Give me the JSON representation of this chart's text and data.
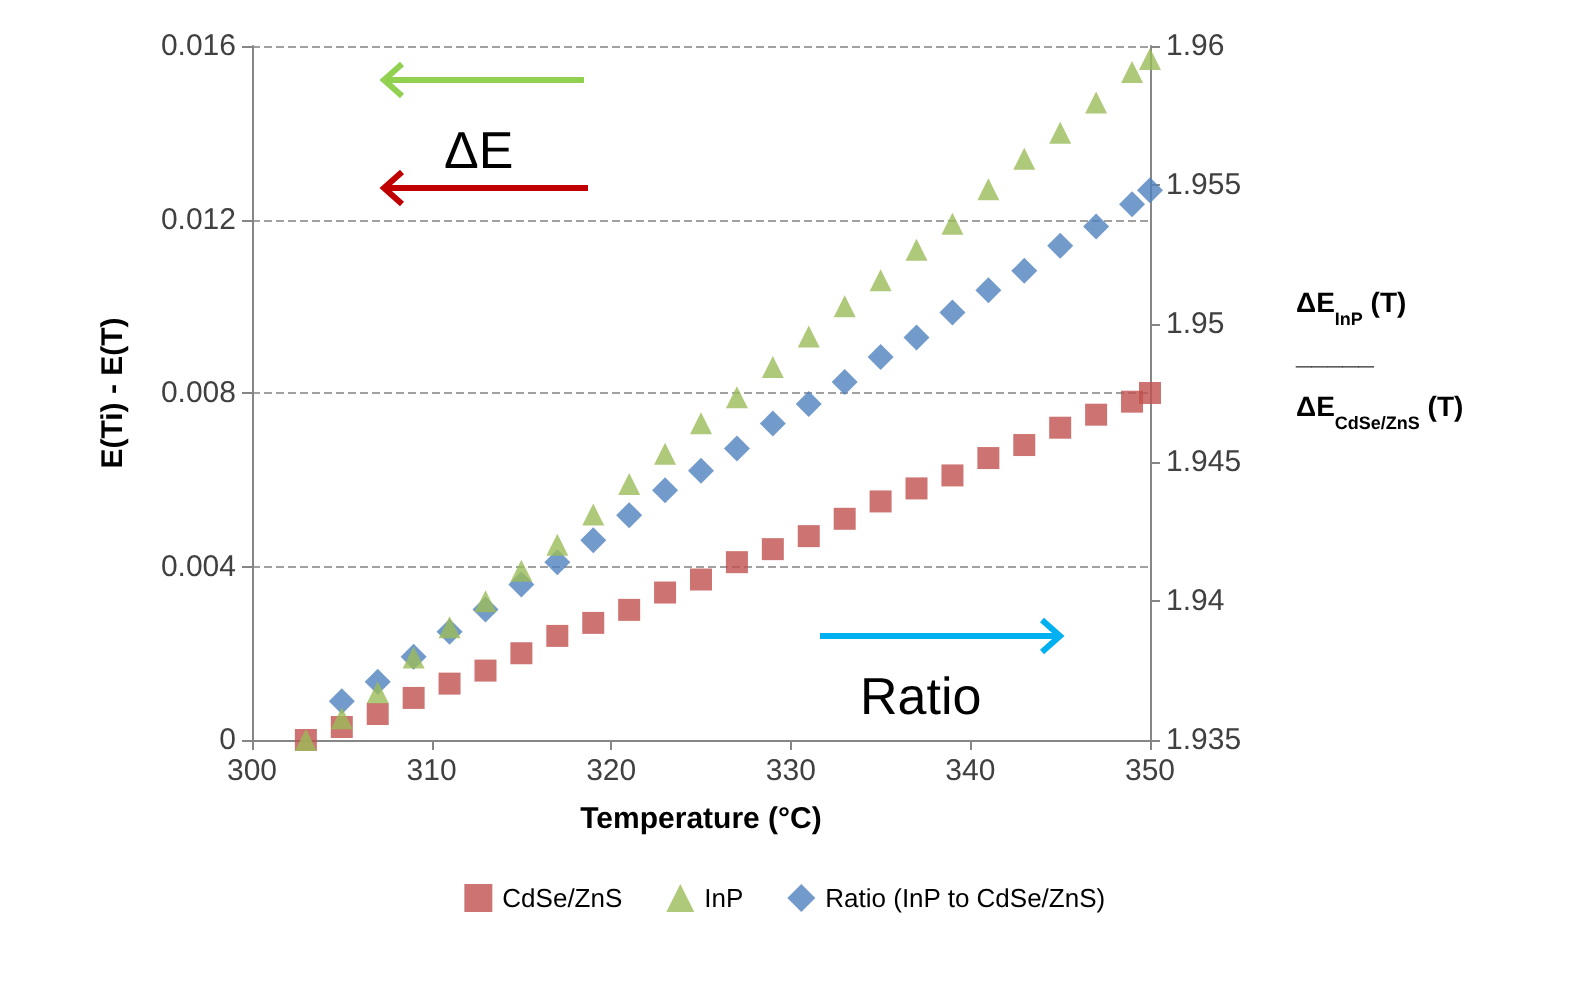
{
  "chart_data": {
    "type": "scatter",
    "xlabel": "Temperature (°C)",
    "ylabel": "E(Ti) - E(T)",
    "y2label": "ΔE$_{InP}$ (T)\n_____\nΔE$_{CdSe/ZnS}$ (T)",
    "x": [
      303,
      305,
      307,
      309,
      311,
      313,
      315,
      317,
      319,
      321,
      323,
      325,
      327,
      329,
      331,
      333,
      335,
      337,
      339,
      341,
      343,
      345,
      347,
      349,
      350
    ],
    "series": [
      {
        "name": "CdSe/ZnS",
        "color": "#c0504d",
        "marker": "square",
        "values": [
          0,
          0.0003,
          0.0006,
          0.00097,
          0.0013,
          0.0016,
          0.002,
          0.0024,
          0.0027,
          0.003,
          0.0034,
          0.0037,
          0.0041,
          0.0044,
          0.0047,
          0.0051,
          0.0055,
          0.0058,
          0.0061,
          0.0065,
          0.0068,
          0.0072,
          0.0075,
          0.0078,
          0.008
        ]
      },
      {
        "name": "InP",
        "color": "#9bbb59",
        "marker": "triangle",
        "values": [
          0,
          0.0005,
          0.0011,
          0.0019,
          0.0026,
          0.0032,
          0.0039,
          0.0045,
          0.0052,
          0.0059,
          0.0066,
          0.0073,
          0.0079,
          0.0086,
          0.0093,
          0.01,
          0.0106,
          0.0113,
          0.0119,
          0.0127,
          0.0134,
          0.014,
          0.0147,
          0.0154,
          0.0157
        ]
      },
      {
        "name": "Ratio (InP to CdSe/ZnS)",
        "color": "#4f81bd",
        "marker": "diamond",
        "axis": "y2",
        "values": [
          null,
          1.9364,
          1.9371,
          1.938,
          1.9389,
          1.9397,
          1.9406,
          1.9414,
          1.9422,
          1.9431,
          1.944,
          1.9447,
          1.9455,
          1.9464,
          1.9471,
          1.9479,
          1.9488,
          1.9495,
          1.9504,
          1.9512,
          1.9519,
          1.9528,
          1.9535,
          1.9543,
          1.9548
        ]
      }
    ],
    "xlim": [
      300,
      350
    ],
    "xticks": [
      300,
      310,
      320,
      330,
      340,
      350
    ],
    "ylim": [
      0,
      0.016
    ],
    "yticks": [
      0,
      0.004,
      0.008,
      0.012,
      0.016
    ],
    "y2lim": [
      1.935,
      1.96
    ],
    "y2ticks": [
      1.935,
      1.94,
      1.945,
      1.95,
      1.955,
      1.96
    ],
    "annotations": [
      "ΔE",
      "Ratio"
    ],
    "grid": "y",
    "legend": "bottom"
  }
}
